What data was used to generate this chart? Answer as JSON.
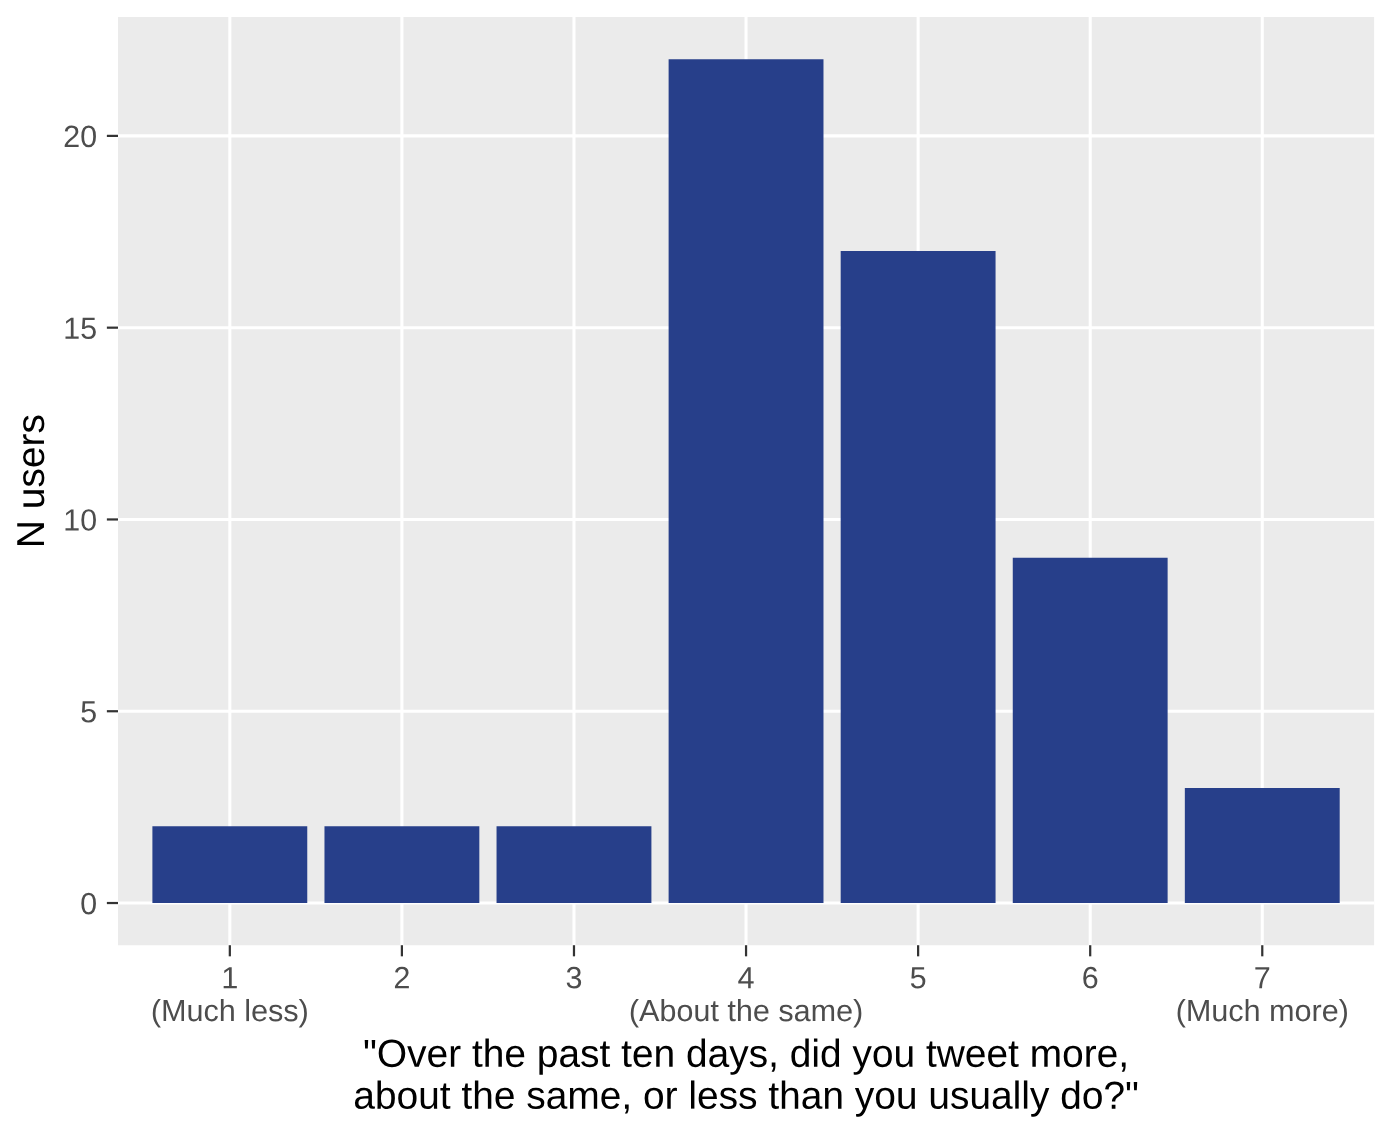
{
  "chart_data": {
    "type": "bar",
    "xlabel": "\"Over the past ten days, did you tweet more,\nabout the same, or less than you usually do?\"",
    "ylabel": "N users",
    "categories": [
      "1\n(Much less)",
      "2",
      "3",
      "4\n(About the same)",
      "5",
      "6",
      "7\n(Much more)"
    ],
    "values": [
      2,
      2,
      2,
      22,
      17,
      9,
      3
    ],
    "color": "#273f8a",
    "ylim": [
      -1.1,
      23.1
    ],
    "yticks": [
      0,
      5,
      10,
      15,
      20
    ],
    "grid": true
  }
}
